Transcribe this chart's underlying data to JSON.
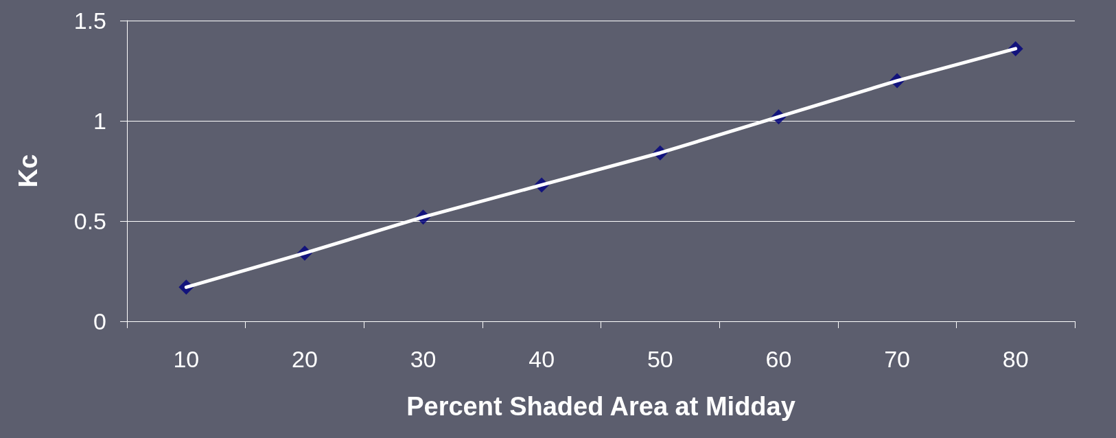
{
  "chart_data": {
    "type": "scatter",
    "xlabel": "Percent Shaded Area at Midday",
    "ylabel": "Kc",
    "categories": [
      "10",
      "20",
      "30",
      "40",
      "50",
      "60",
      "70",
      "80"
    ],
    "series": [
      {
        "color": "#00007f",
        "marker": "diamond",
        "values": [
          0.17,
          0.34,
          0.52,
          0.68,
          0.84,
          1.02,
          1.2,
          1.36
        ]
      },
      {
        "type": "line",
        "color": "#ffffff",
        "marker": "none",
        "line_style": "solid",
        "values": [
          0.17,
          0.34,
          0.52,
          0.68,
          0.84,
          1.02,
          1.2,
          1.36
        ]
      }
    ],
    "ylim": [
      0,
      1.5
    ],
    "yticks": [
      0,
      0.5,
      1,
      1.5
    ],
    "grid": "y"
  }
}
